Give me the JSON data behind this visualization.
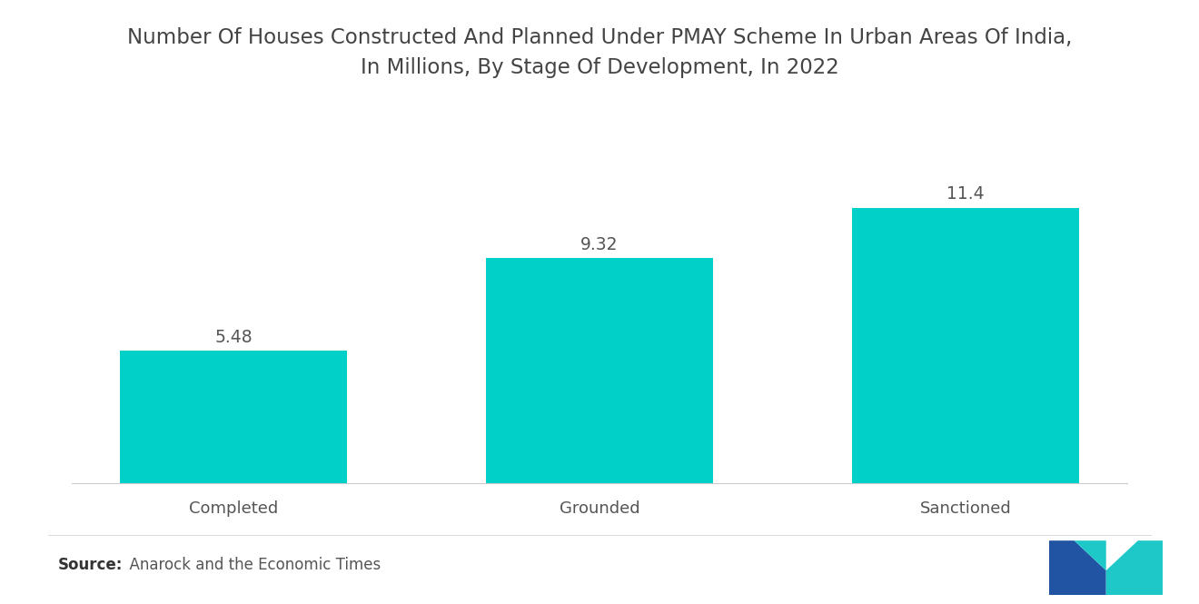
{
  "title_line1": "Number Of Houses Constructed And Planned Under PMAY Scheme In Urban Areas Of India,",
  "title_line2": "In Millions, By Stage Of Development, In 2022",
  "categories": [
    "Completed",
    "Grounded",
    "Sanctioned"
  ],
  "values": [
    5.48,
    9.32,
    11.4
  ],
  "bar_color": "#00D0C8",
  "bar_labels": [
    "5.48",
    "9.32",
    "11.4"
  ],
  "source_bold": "Source:",
  "source_text": "  Anarock and the Economic Times",
  "background_color": "#ffffff",
  "title_fontsize": 16.5,
  "label_fontsize": 13.5,
  "tick_fontsize": 13,
  "source_fontsize": 12,
  "ylim": [
    0,
    14
  ],
  "bar_width": 0.62
}
